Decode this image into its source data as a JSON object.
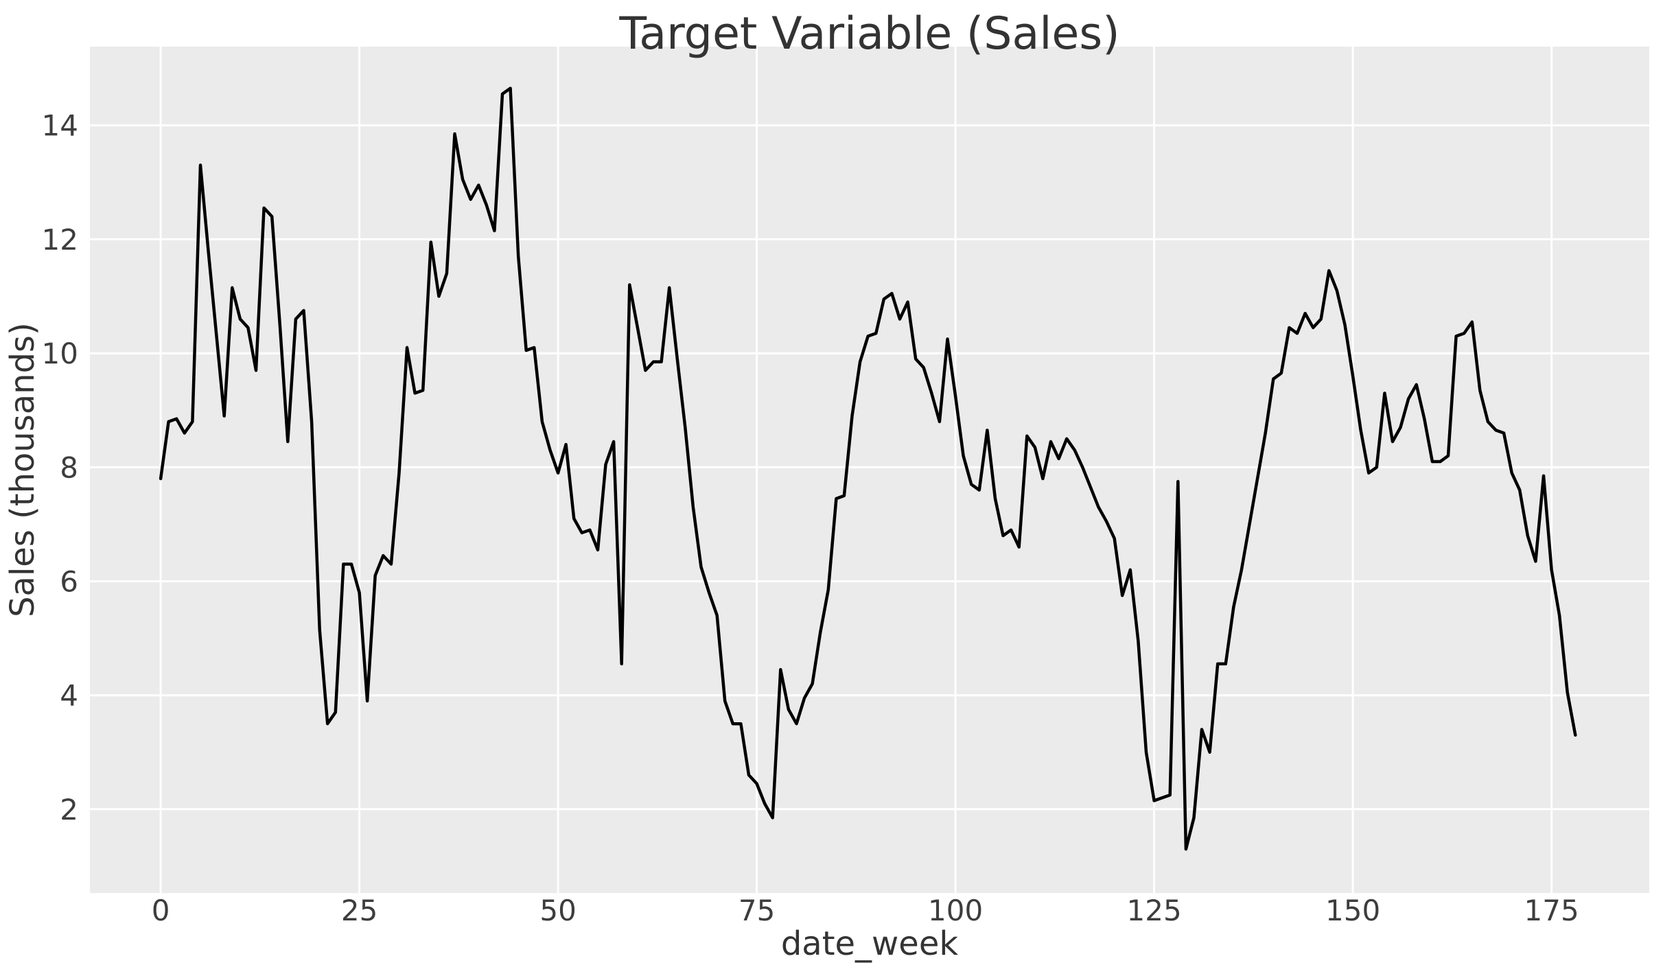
{
  "chart_data": {
    "type": "line",
    "title": "Target Variable (Sales)",
    "xlabel": "date_week",
    "ylabel": "Sales (thousands)",
    "legend": null,
    "grid": true,
    "style": {
      "plot_bg": "#ebebeb",
      "grid_color": "#ffffff",
      "line_color": "#000000",
      "tick_color": "#3d3d3d",
      "line_width": 4.5
    },
    "xticks": [
      0,
      25,
      50,
      75,
      100,
      125,
      150,
      175
    ],
    "yticks": [
      2,
      4,
      6,
      8,
      10,
      12,
      14
    ],
    "xlim": [
      -8.9,
      187.3
    ],
    "ylim": [
      0.53,
      15.38
    ],
    "x": [
      0,
      1,
      2,
      3,
      4,
      5,
      6,
      7,
      8,
      9,
      10,
      11,
      12,
      13,
      14,
      15,
      16,
      17,
      18,
      19,
      20,
      21,
      22,
      23,
      24,
      25,
      26,
      27,
      28,
      29,
      30,
      31,
      32,
      33,
      34,
      35,
      36,
      37,
      38,
      39,
      40,
      41,
      42,
      43,
      44,
      45,
      46,
      47,
      48,
      49,
      50,
      51,
      52,
      53,
      54,
      55,
      56,
      57,
      58,
      59,
      60,
      61,
      62,
      63,
      64,
      65,
      66,
      67,
      68,
      69,
      70,
      71,
      72,
      73,
      74,
      75,
      76,
      77,
      78,
      79,
      80,
      81,
      82,
      83,
      84,
      85,
      86,
      87,
      88,
      89,
      90,
      91,
      92,
      93,
      94,
      95,
      96,
      97,
      98,
      99,
      100,
      101,
      102,
      103,
      104,
      105,
      106,
      107,
      108,
      109,
      110,
      111,
      112,
      113,
      114,
      115,
      116,
      117,
      118,
      119,
      120,
      121,
      122,
      123,
      124,
      125,
      126,
      127,
      128,
      129,
      130,
      131,
      132,
      133,
      134,
      135,
      136,
      137,
      138,
      139,
      140,
      141,
      142,
      143,
      144,
      145,
      146,
      147,
      148,
      149,
      150,
      151,
      152,
      153,
      154,
      155,
      156,
      157,
      158,
      159,
      160,
      161,
      162,
      163,
      164,
      165,
      166,
      167,
      168,
      169,
      170,
      171,
      172,
      173,
      174,
      175,
      176,
      177,
      178
    ],
    "y": [
      7.8,
      8.8,
      8.85,
      8.6,
      8.8,
      13.3,
      11.8,
      10.35,
      8.9,
      11.15,
      10.6,
      10.45,
      9.7,
      12.55,
      12.4,
      10.5,
      8.45,
      10.6,
      10.75,
      8.8,
      5.15,
      3.5,
      3.7,
      6.3,
      6.3,
      5.8,
      3.9,
      6.1,
      6.45,
      6.3,
      7.9,
      10.1,
      9.3,
      9.35,
      11.95,
      11.0,
      11.4,
      13.85,
      13.05,
      12.7,
      12.95,
      12.6,
      12.15,
      14.55,
      14.65,
      11.7,
      10.05,
      10.1,
      8.8,
      8.3,
      7.9,
      8.4,
      7.1,
      6.85,
      6.9,
      6.55,
      8.05,
      8.45,
      4.55,
      11.2,
      10.45,
      9.7,
      9.85,
      9.85,
      11.15,
      9.9,
      8.7,
      7.3,
      6.25,
      5.8,
      5.4,
      3.9,
      3.5,
      3.5,
      2.6,
      2.45,
      2.1,
      1.85,
      4.45,
      3.75,
      3.5,
      3.95,
      4.2,
      5.1,
      5.85,
      7.45,
      7.5,
      8.9,
      9.85,
      10.3,
      10.35,
      10.95,
      11.05,
      10.6,
      10.9,
      9.9,
      9.75,
      9.3,
      8.8,
      10.25,
      9.25,
      8.2,
      7.7,
      7.6,
      8.65,
      7.45,
      6.8,
      6.9,
      6.6,
      8.55,
      8.35,
      7.8,
      8.45,
      8.15,
      8.5,
      8.3,
      8.0,
      7.65,
      7.3,
      7.05,
      6.75,
      5.75,
      6.2,
      4.95,
      3.0,
      2.15,
      2.2,
      2.25,
      7.75,
      1.3,
      1.85,
      3.4,
      3.0,
      4.55,
      4.55,
      5.55,
      6.2,
      7.0,
      7.8,
      8.6,
      9.55,
      9.65,
      10.45,
      10.35,
      10.7,
      10.45,
      10.6,
      11.45,
      11.1,
      10.5,
      9.6,
      8.65,
      7.9,
      8.0,
      9.3,
      8.45,
      8.7,
      9.2,
      9.45,
      8.85,
      8.1,
      8.1,
      8.2,
      10.3,
      10.35,
      10.55,
      9.35,
      8.8,
      8.65,
      8.6,
      7.9,
      7.6,
      6.8,
      6.35,
      7.85,
      6.2,
      5.4,
      4.05,
      3.3
    ]
  }
}
